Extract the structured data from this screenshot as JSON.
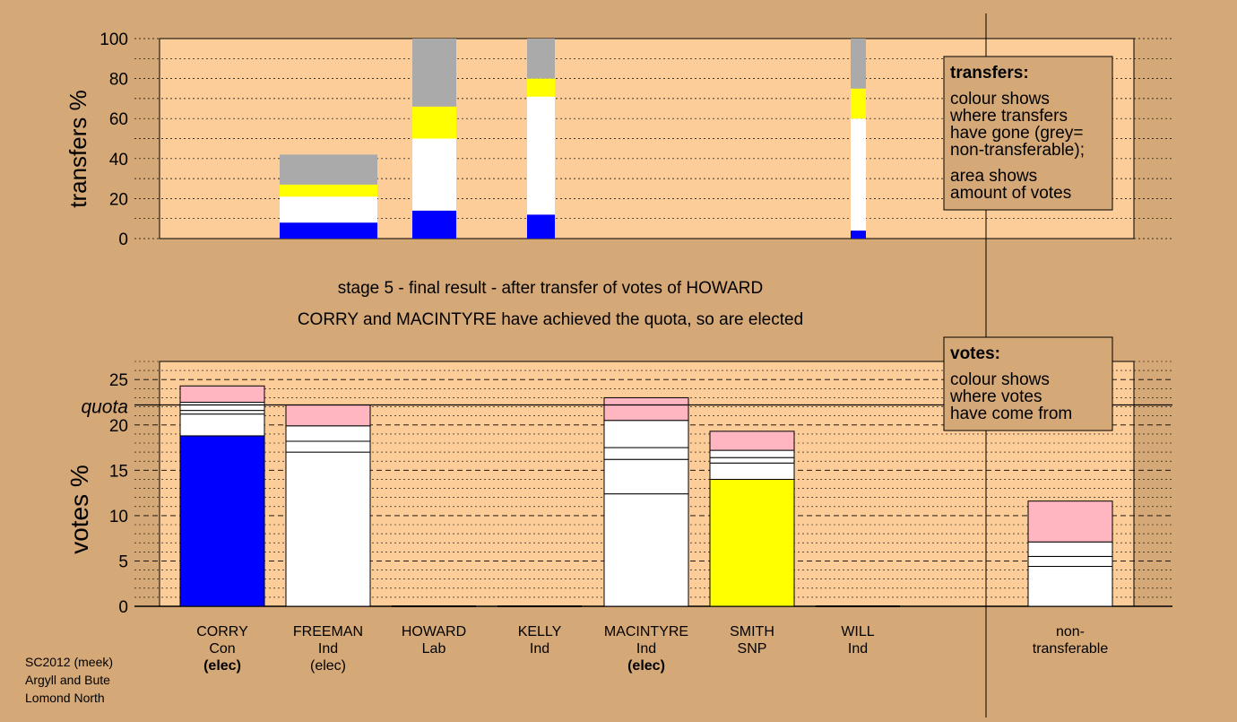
{
  "colors": {
    "background": "#d5a878",
    "plot_area": "#fdcd99",
    "box": "#d5a878",
    "con": "#0000ff",
    "ind": "#ffffff",
    "lab": "#ffff00",
    "snp": "#ffff00",
    "transferred": "#ffb6c1",
    "non_transferable": "#aaaaaa"
  },
  "heading": {
    "line1": "stage 5 - final result - after transfer of votes of HOWARD",
    "line2": "CORRY and MACINTYRE have achieved the quota, so are elected"
  },
  "transfers_box": {
    "title": "transfers:",
    "lines": [
      "colour shows",
      "where transfers",
      "have gone (grey=",
      "non-transferable);"
    ],
    "lines2": [
      "area shows",
      "amount of votes"
    ]
  },
  "votes_box": {
    "title": "votes:",
    "lines": [
      "colour shows",
      "where votes",
      "have come from"
    ]
  },
  "footer": {
    "line1": "SC2012 (meek)",
    "line2": "Argyll and Bute",
    "line3": "Lomond North"
  },
  "chart_data": [
    {
      "type": "bar",
      "stacked": true,
      "ylabel": "transfers %",
      "ylim": [
        0,
        100
      ],
      "yticks": [
        0,
        20,
        40,
        60,
        80,
        100
      ],
      "grid": "dotted",
      "bars": [
        {
          "segments": [
            {
              "color": "#0000ff",
              "value": 8
            },
            {
              "color": "#ffffff",
              "value": 13
            },
            {
              "color": "#ffff00",
              "value": 6
            },
            {
              "color": "#aaaaaa",
              "value": 15
            }
          ]
        },
        {
          "segments": [
            {
              "color": "#0000ff",
              "value": 14
            },
            {
              "color": "#ffffff",
              "value": 36
            },
            {
              "color": "#ffff00",
              "value": 16
            },
            {
              "color": "#aaaaaa",
              "value": 34
            }
          ]
        },
        {
          "segments": [
            {
              "color": "#0000ff",
              "value": 12
            },
            {
              "color": "#ffffff",
              "value": 59
            },
            {
              "color": "#ffff00",
              "value": 9
            },
            {
              "color": "#aaaaaa",
              "value": 20
            }
          ]
        },
        {
          "segments": [
            {
              "color": "#0000ff",
              "value": 4
            },
            {
              "color": "#ffffff",
              "value": 56
            },
            {
              "color": "#ffff00",
              "value": 15
            },
            {
              "color": "#aaaaaa",
              "value": 25
            }
          ]
        }
      ]
    },
    {
      "type": "bar",
      "stacked": true,
      "ylabel": "votes %",
      "ylim": [
        0,
        27
      ],
      "yticks": [
        0,
        5,
        10,
        15,
        20,
        25
      ],
      "quota": 22.2,
      "quota_label": "quota",
      "grid": "dotted",
      "categories": [
        {
          "name": "CORRY",
          "party": "Con",
          "status": "(elec)"
        },
        {
          "name": "FREEMAN",
          "party": "Ind",
          "status": "(elec)"
        },
        {
          "name": "HOWARD",
          "party": "Lab",
          "status": ""
        },
        {
          "name": "KELLY",
          "party": "Ind",
          "status": ""
        },
        {
          "name": "MACINTYRE",
          "party": "Ind",
          "status": "(elec)"
        },
        {
          "name": "SMITH",
          "party": "SNP",
          "status": ""
        },
        {
          "name": "WILL",
          "party": "Ind",
          "status": ""
        },
        {
          "name": "non-",
          "party": "transferable",
          "status": ""
        }
      ],
      "bars": [
        {
          "segments": [
            {
              "color": "#0000ff",
              "value": 18.8
            },
            {
              "color": "#ffffff",
              "value": 2.4
            },
            {
              "color": "#ffffff",
              "value": 0.4
            },
            {
              "color": "#ffffff",
              "value": 0.9
            },
            {
              "color": "#ffb6c1",
              "value": 1.8
            }
          ]
        },
        {
          "segments": [
            {
              "color": "#ffffff",
              "value": 17.0
            },
            {
              "color": "#ffffff",
              "value": 1.2
            },
            {
              "color": "#ffffff",
              "value": 1.7
            },
            {
              "color": "#ffb6c1",
              "value": 2.3
            }
          ]
        },
        {
          "segments": []
        },
        {
          "segments": []
        },
        {
          "segments": [
            {
              "color": "#ffffff",
              "value": 12.4
            },
            {
              "color": "#ffffff",
              "value": 3.8
            },
            {
              "color": "#ffffff",
              "value": 1.3
            },
            {
              "color": "#ffffff",
              "value": 3.0
            },
            {
              "color": "#ffb6c1",
              "value": 2.5
            }
          ]
        },
        {
          "segments": [
            {
              "color": "#ffff00",
              "value": 14.0
            },
            {
              "color": "#ffffff",
              "value": 1.8
            },
            {
              "color": "#ffffff",
              "value": 0.6
            },
            {
              "color": "#ffffff",
              "value": 0.8
            },
            {
              "color": "#ffb6c1",
              "value": 2.1
            }
          ]
        },
        {
          "segments": []
        },
        {
          "segments": [
            {
              "color": "#ffffff",
              "value": 4.4
            },
            {
              "color": "#ffffff",
              "value": 1.1
            },
            {
              "color": "#ffffff",
              "value": 1.6
            },
            {
              "color": "#ffb6c1",
              "value": 4.5
            }
          ]
        }
      ]
    }
  ]
}
